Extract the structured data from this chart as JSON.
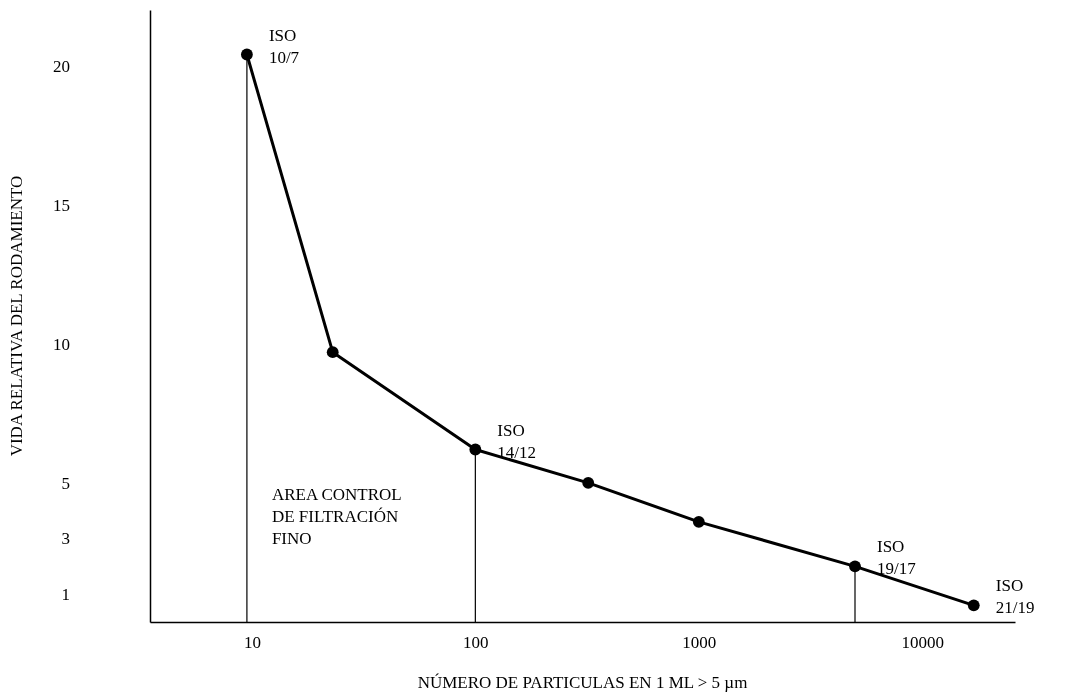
{
  "chart_data": {
    "type": "line",
    "xlabel": "NÚMERO DE PARTICULAS EN 1 ML > 5 µm",
    "ylabel": "VIDA RELATIVA DEL RODAMIENTO",
    "log": "x",
    "x": [
      9.5,
      23,
      100,
      320,
      1000,
      5000,
      17000
    ],
    "series": [
      {
        "color": "#000000",
        "values": [
          20.4,
          9.7,
          6.2,
          5.0,
          3.6,
          2.0,
          0.6
        ]
      }
    ],
    "xlim": [
      3.5,
      26000
    ],
    "xticks": [
      10,
      100,
      1000,
      10000
    ],
    "ylim": [
      0,
      22
    ],
    "yticks": [
      1,
      3,
      5,
      10,
      15,
      20
    ],
    "marker": "circle",
    "line_style": "solid",
    "grid": false,
    "ref_lines": [
      {
        "axis": "x",
        "value": 9.5,
        "color": "#000000"
      },
      {
        "axis": "x",
        "value": 100,
        "color": "#000000"
      },
      {
        "axis": "x",
        "value": 5000,
        "color": "#000000"
      }
    ],
    "annotations": [
      {
        "text": "ISO\n10/7",
        "x": 9.5,
        "y": 20.4
      },
      {
        "text": "ISO\n14/12",
        "x": 100,
        "y": 6.2
      },
      {
        "text": "ISO\n19/17",
        "x": 5000,
        "y": 2.0
      },
      {
        "text": "ISO\n21/19",
        "x": 17000,
        "y": 0.6
      },
      "AREA CONTROL\nDE FILTRACIÓN\nFINO"
    ]
  }
}
